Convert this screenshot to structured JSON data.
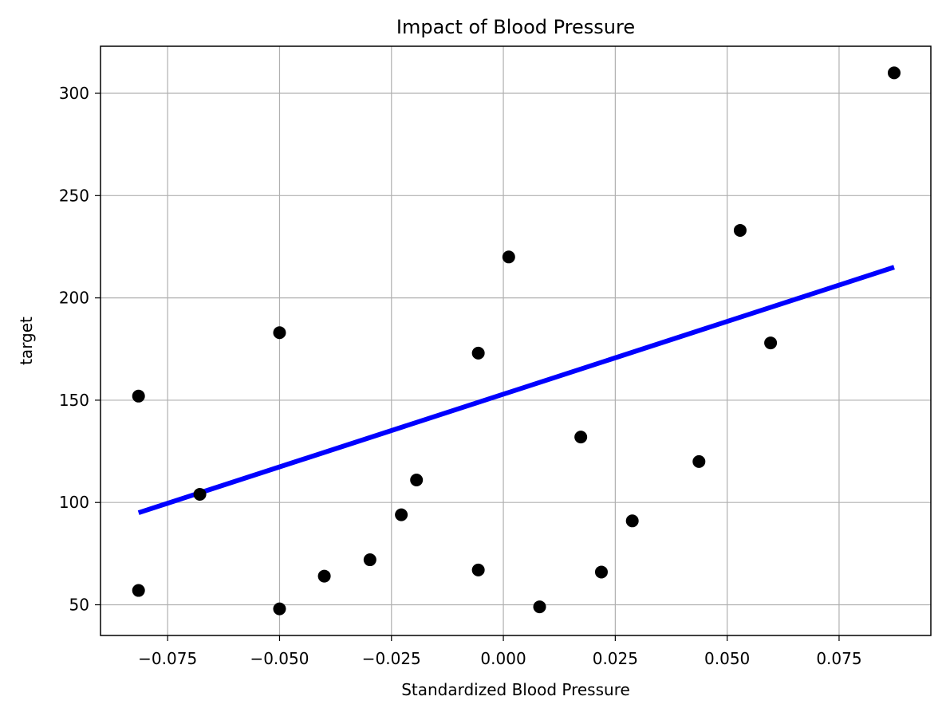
{
  "chart_data": {
    "type": "scatter",
    "title": "Impact of Blood Pressure",
    "xlabel": "Standardized Blood Pressure",
    "ylabel": "target",
    "xlim": [
      -0.09,
      0.0955
    ],
    "ylim": [
      35,
      323
    ],
    "xticks": [
      -0.075,
      -0.05,
      -0.025,
      0.0,
      0.025,
      0.05,
      0.075
    ],
    "xtick_labels": [
      "−0.075",
      "−0.050",
      "−0.025",
      "0.000",
      "0.025",
      "0.050",
      "0.075"
    ],
    "yticks": [
      50,
      100,
      150,
      200,
      250,
      300
    ],
    "ytick_labels": [
      "50",
      "100",
      "150",
      "200",
      "250",
      "300"
    ],
    "grid": true,
    "series": [
      {
        "type": "scatter",
        "color": "#000000",
        "points": [
          {
            "x": -0.0815,
            "y": 152
          },
          {
            "x": -0.0815,
            "y": 57
          },
          {
            "x": -0.0678,
            "y": 104
          },
          {
            "x": -0.05,
            "y": 183
          },
          {
            "x": -0.05,
            "y": 48
          },
          {
            "x": -0.04,
            "y": 64
          },
          {
            "x": -0.0298,
            "y": 72
          },
          {
            "x": -0.0228,
            "y": 94
          },
          {
            "x": -0.0194,
            "y": 111
          },
          {
            "x": -0.0056,
            "y": 173
          },
          {
            "x": -0.0056,
            "y": 67
          },
          {
            "x": 0.0012,
            "y": 220
          },
          {
            "x": 0.0081,
            "y": 49
          },
          {
            "x": 0.0173,
            "y": 132
          },
          {
            "x": 0.0219,
            "y": 66
          },
          {
            "x": 0.0288,
            "y": 91
          },
          {
            "x": 0.0437,
            "y": 120
          },
          {
            "x": 0.0529,
            "y": 233
          },
          {
            "x": 0.0597,
            "y": 178
          },
          {
            "x": 0.0873,
            "y": 310
          }
        ]
      },
      {
        "type": "line",
        "color": "#0000ff",
        "points": [
          {
            "x": -0.0815,
            "y": 95
          },
          {
            "x": 0.0873,
            "y": 215
          }
        ]
      }
    ]
  }
}
